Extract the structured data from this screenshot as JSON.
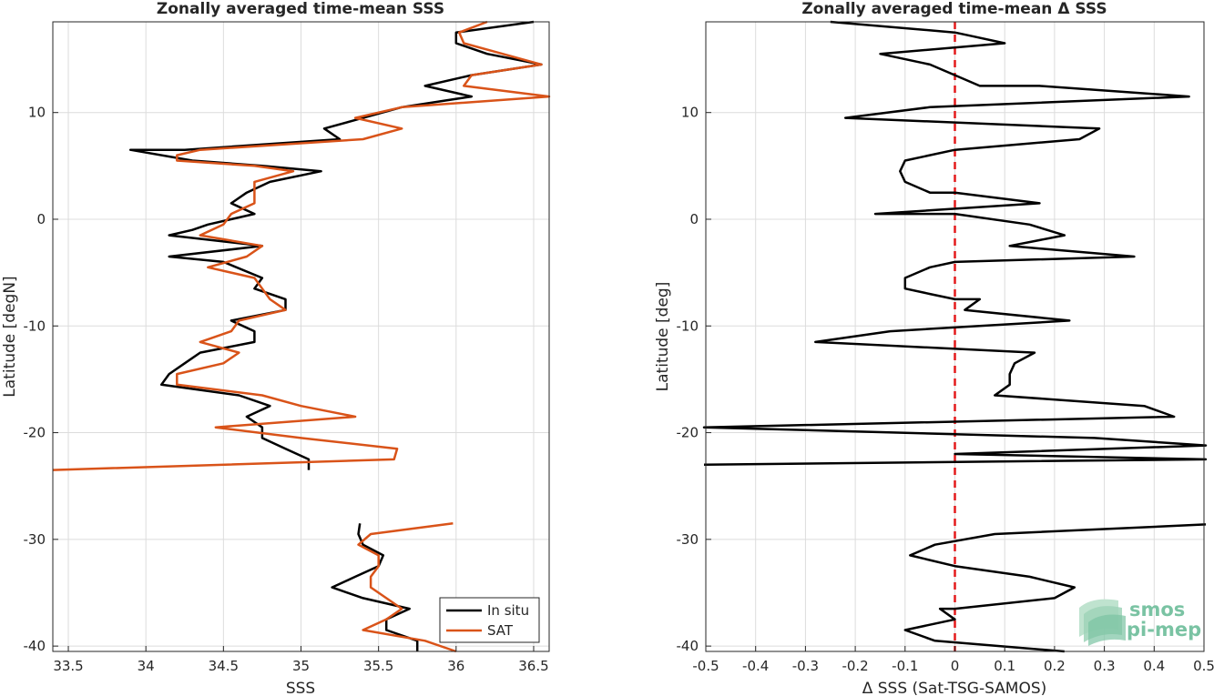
{
  "chart_data": [
    {
      "type": "line",
      "title": "Zonally averaged time-mean SSS",
      "xlabel": "SSS",
      "ylabel": "Latitude [degN]",
      "xlim": [
        33.4,
        36.6
      ],
      "ylim": [
        -40.5,
        18.5
      ],
      "xticks": [
        33.5,
        34,
        34.5,
        35,
        35.5,
        36,
        36.5
      ],
      "xtick_labels": [
        "33.5",
        "34",
        "34.5",
        "35",
        "35.5",
        "36",
        "36.5"
      ],
      "yticks": [
        10,
        0,
        -10,
        -20,
        -30,
        -40
      ],
      "ytick_labels": [
        "10",
        "0",
        "-10",
        "-20",
        "-30",
        "-40"
      ],
      "grid": true,
      "legend_position": "bottom-right",
      "series": [
        {
          "name": "In situ",
          "color": "#000000",
          "segments": [
            [
              [
                36.5,
                18.5
              ],
              [
                36.0,
                17.5
              ],
              [
                36.0,
                16.5
              ],
              [
                36.2,
                15.5
              ],
              [
                36.55,
                14.5
              ],
              [
                36.1,
                13.5
              ],
              [
                35.8,
                12.5
              ],
              [
                36.1,
                11.5
              ],
              [
                35.65,
                10.5
              ],
              [
                35.4,
                9.5
              ],
              [
                35.15,
                8.5
              ],
              [
                35.25,
                7.5
              ],
              [
                34.25,
                6.5
              ],
              [
                33.9,
                6.5
              ],
              [
                34.3,
                5.5
              ],
              [
                34.75,
                5
              ],
              [
                35.13,
                4.5
              ],
              [
                34.8,
                3.5
              ],
              [
                34.65,
                2.5
              ],
              [
                34.55,
                1.5
              ],
              [
                34.7,
                0.5
              ],
              [
                34.4,
                -0.5
              ],
              [
                34.3,
                -1
              ],
              [
                34.15,
                -1.5
              ],
              [
                34.75,
                -2.5
              ],
              [
                34.15,
                -3.5
              ],
              [
                34.5,
                -4
              ],
              [
                34.75,
                -5.5
              ],
              [
                34.7,
                -6.5
              ],
              [
                34.9,
                -7.5
              ],
              [
                34.9,
                -8.5
              ],
              [
                34.55,
                -9.5
              ],
              [
                34.7,
                -10.5
              ],
              [
                34.7,
                -11.5
              ],
              [
                34.35,
                -12.5
              ],
              [
                34.25,
                -13.5
              ],
              [
                34.15,
                -14.5
              ],
              [
                34.1,
                -15.5
              ],
              [
                34.6,
                -16.5
              ],
              [
                34.8,
                -17.5
              ],
              [
                34.65,
                -18.5
              ],
              [
                34.75,
                -19.5
              ],
              [
                34.75,
                -20.5
              ],
              [
                34.9,
                -21.5
              ],
              [
                35.05,
                -22.5
              ],
              [
                35.05,
                -23.5
              ]
            ],
            [
              [
                35.38,
                -28.5
              ],
              [
                35.37,
                -29.5
              ],
              [
                35.4,
                -30.5
              ],
              [
                35.53,
                -31.5
              ],
              [
                35.5,
                -32.5
              ],
              [
                35.35,
                -33.5
              ],
              [
                35.2,
                -34.5
              ],
              [
                35.4,
                -35.5
              ],
              [
                35.7,
                -36.5
              ],
              [
                35.55,
                -37.5
              ],
              [
                35.55,
                -38.5
              ],
              [
                35.75,
                -39.5
              ],
              [
                35.75,
                -40.5
              ]
            ]
          ]
        },
        {
          "name": "SAT",
          "color": "#d95319",
          "segments": [
            [
              [
                36.2,
                18.5
              ],
              [
                36.02,
                17.5
              ],
              [
                36.05,
                16.5
              ],
              [
                36.3,
                15.5
              ],
              [
                36.55,
                14.5
              ],
              [
                36.1,
                13.5
              ],
              [
                36.05,
                12.5
              ],
              [
                36.6,
                11.5
              ],
              [
                35.65,
                10.5
              ],
              [
                35.35,
                9.5
              ],
              [
                35.65,
                8.5
              ],
              [
                35.4,
                7.5
              ],
              [
                34.35,
                6.5
              ],
              [
                34.2,
                6
              ],
              [
                34.2,
                5.5
              ],
              [
                34.7,
                5
              ],
              [
                34.95,
                4.5
              ],
              [
                34.7,
                3.5
              ],
              [
                34.7,
                2.5
              ],
              [
                34.7,
                1.5
              ],
              [
                34.55,
                0.5
              ],
              [
                34.5,
                -0.5
              ],
              [
                34.35,
                -1.5
              ],
              [
                34.75,
                -2.5
              ],
              [
                34.65,
                -3.5
              ],
              [
                34.4,
                -4.5
              ],
              [
                34.7,
                -5.5
              ],
              [
                34.75,
                -6.5
              ],
              [
                34.8,
                -7.5
              ],
              [
                34.9,
                -8.5
              ],
              [
                34.6,
                -9.5
              ],
              [
                34.55,
                -10.5
              ],
              [
                34.35,
                -11.5
              ],
              [
                34.6,
                -12.5
              ],
              [
                34.5,
                -13.5
              ],
              [
                34.2,
                -14.5
              ],
              [
                34.2,
                -15.5
              ],
              [
                34.75,
                -16.5
              ],
              [
                35.0,
                -17.5
              ],
              [
                35.35,
                -18.5
              ],
              [
                34.45,
                -19.5
              ],
              [
                35.0,
                -20.5
              ],
              [
                35.62,
                -21.5
              ],
              [
                35.6,
                -22.5
              ],
              [
                33.4,
                -23.5
              ]
            ],
            [
              [
                35.98,
                -28.5
              ],
              [
                35.45,
                -29.5
              ],
              [
                35.37,
                -30.5
              ],
              [
                35.5,
                -31.5
              ],
              [
                35.5,
                -32.5
              ],
              [
                35.45,
                -33.5
              ],
              [
                35.45,
                -34.5
              ],
              [
                35.55,
                -35.5
              ],
              [
                35.65,
                -36.5
              ],
              [
                35.55,
                -37.5
              ],
              [
                35.4,
                -38.5
              ],
              [
                35.8,
                -39.5
              ],
              [
                36.0,
                -40.5
              ]
            ]
          ]
        }
      ]
    },
    {
      "type": "line",
      "title": "Zonally averaged time-mean Δ SSS",
      "xlabel": "Δ SSS (Sat-TSG-SAMOS)",
      "ylabel": "Latitude [deg]",
      "xlim": [
        -0.5,
        0.5
      ],
      "ylim": [
        -40.5,
        18.5
      ],
      "xticks": [
        -0.5,
        -0.4,
        -0.3,
        -0.2,
        -0.1,
        0,
        0.1,
        0.2,
        0.3,
        0.4,
        0.5
      ],
      "xtick_labels": [
        "-0.5",
        "-0.4",
        "-0.3",
        "-0.2",
        "-0.1",
        "0",
        "0.1",
        "0.2",
        "0.3",
        "0.4",
        "0.5"
      ],
      "yticks": [
        10,
        0,
        -10,
        -20,
        -30,
        -40
      ],
      "ytick_labels": [
        "10",
        "0",
        "-10",
        "-20",
        "-30",
        "-40"
      ],
      "grid": true,
      "reference_line": {
        "x": 0,
        "color": "#e41a1c",
        "style": "dashed"
      },
      "series": [
        {
          "name": "",
          "color": "#000000",
          "segments": [
            [
              [
                -0.25,
                18.5
              ],
              [
                0.0,
                17.5
              ],
              [
                0.03,
                17.2
              ],
              [
                0.1,
                16.5
              ],
              [
                -0.15,
                15.5
              ],
              [
                -0.05,
                14.5
              ],
              [
                0.0,
                13.5
              ],
              [
                0.05,
                12.5
              ],
              [
                0.17,
                12.5
              ],
              [
                0.47,
                11.5
              ],
              [
                -0.05,
                10.5
              ],
              [
                -0.22,
                9.5
              ],
              [
                0.29,
                8.5
              ],
              [
                0.25,
                7.5
              ],
              [
                0.0,
                6.5
              ],
              [
                -0.1,
                5.5
              ],
              [
                -0.11,
                4.5
              ],
              [
                -0.1,
                3.5
              ],
              [
                -0.05,
                2.5
              ],
              [
                0.0,
                2.5
              ],
              [
                0.17,
                1.5
              ],
              [
                -0.16,
                0.5
              ],
              [
                0.0,
                0.5
              ],
              [
                0.15,
                -0.5
              ],
              [
                0.22,
                -1.5
              ],
              [
                0.11,
                -2.5
              ],
              [
                0.36,
                -3.5
              ],
              [
                0.0,
                -4
              ],
              [
                -0.05,
                -4.5
              ],
              [
                -0.1,
                -5.5
              ],
              [
                -0.1,
                -6.5
              ],
              [
                -0.05,
                -7
              ],
              [
                0.0,
                -7.5
              ],
              [
                0.05,
                -7.5
              ],
              [
                0.02,
                -8.5
              ],
              [
                0.23,
                -9.5
              ],
              [
                -0.13,
                -10.5
              ],
              [
                -0.28,
                -11.5
              ],
              [
                0.16,
                -12.5
              ],
              [
                0.12,
                -13.5
              ],
              [
                0.11,
                -14.5
              ],
              [
                0.11,
                -15.5
              ],
              [
                0.08,
                -16.5
              ],
              [
                0.38,
                -17.5
              ],
              [
                0.44,
                -18.5
              ],
              [
                -0.52,
                -19.5
              ],
              [
                0.28,
                -20.5
              ],
              [
                0.52,
                -21.2
              ],
              [
                0.0,
                -22.0
              ],
              [
                0.52,
                -22.5
              ],
              [
                -0.52,
                -23.0
              ]
            ],
            [
              [
                0.52,
                -28.6
              ],
              [
                0.08,
                -29.5
              ],
              [
                -0.04,
                -30.5
              ],
              [
                -0.09,
                -31.5
              ],
              [
                0.0,
                -32.5
              ],
              [
                0.15,
                -33.5
              ],
              [
                0.24,
                -34.5
              ],
              [
                0.2,
                -35.5
              ],
              [
                0.0,
                -36.5
              ],
              [
                -0.03,
                -36.5
              ],
              [
                0.0,
                -37.5
              ],
              [
                -0.1,
                -38.5
              ],
              [
                -0.04,
                -39.5
              ],
              [
                0.22,
                -40.5
              ]
            ]
          ]
        }
      ]
    }
  ],
  "legend": {
    "items": [
      {
        "label": "In situ",
        "color": "#000000"
      },
      {
        "label": "SAT",
        "color": "#d95319"
      }
    ]
  },
  "logo": {
    "line1": "smos",
    "line2": "pi-mep"
  }
}
